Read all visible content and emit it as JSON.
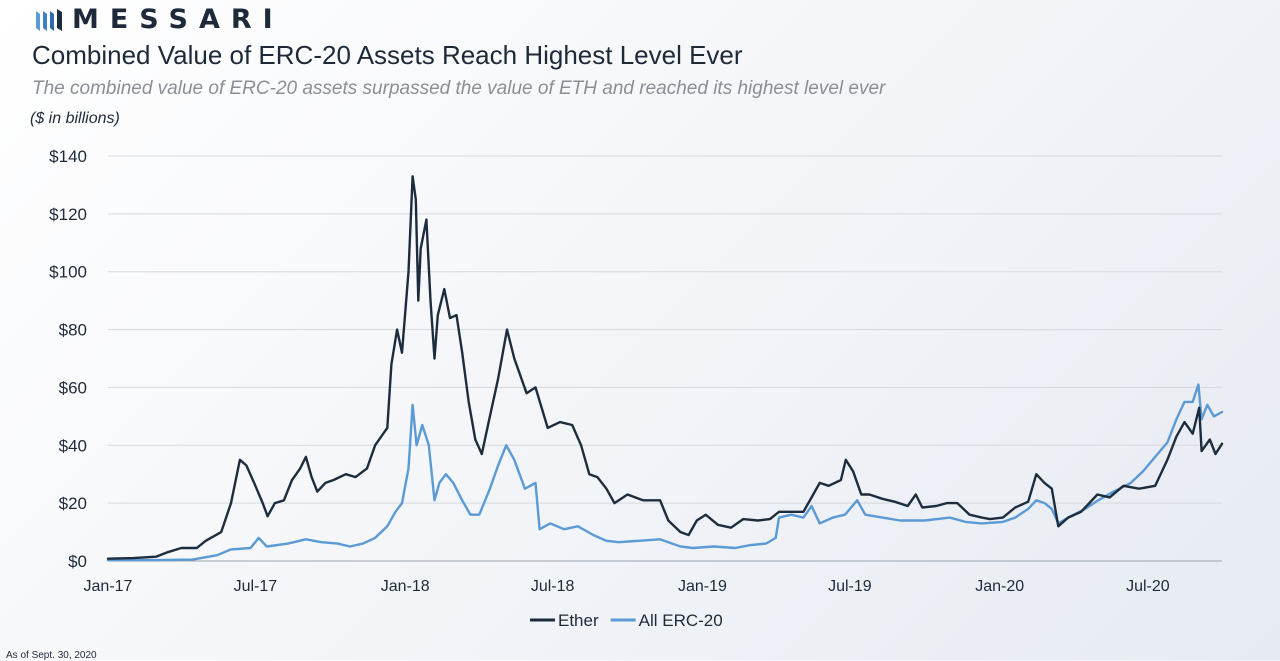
{
  "header": {
    "brand": "MESSARI",
    "title": "Combined Value of ERC-20 Assets Reach Highest Level Ever",
    "subtitle": "The combined value of ERC-20 assets surpassed the value of ETH and reached its highest level ever",
    "unit_label": "($ in billions)"
  },
  "footer": {
    "note": "As of Sept. 30, 2020"
  },
  "chart_data": {
    "type": "line",
    "title": "Combined Value of ERC-20 Assets Reach Highest Level Ever",
    "ylabel": "($ in billions)",
    "xlabel": "",
    "x_range": [
      "2017-01-01",
      "2020-09-30"
    ],
    "ylim": [
      0,
      140
    ],
    "y_ticks": [
      0,
      20,
      40,
      60,
      80,
      100,
      120,
      140
    ],
    "y_tick_labels": [
      "$0",
      "$20",
      "$40",
      "$60",
      "$80",
      "$100",
      "$120",
      "$140"
    ],
    "x_ticks": [
      "2017-01-01",
      "2017-07-01",
      "2018-01-01",
      "2018-07-01",
      "2019-01-01",
      "2019-07-01",
      "2020-01-01",
      "2020-07-01"
    ],
    "x_tick_labels": [
      "Jan-17",
      "Jul-17",
      "Jan-18",
      "Jul-18",
      "Jan-19",
      "Jul-19",
      "Jan-20",
      "Jul-20"
    ],
    "grid": "horizontal",
    "legend_position": "bottom-center",
    "series": [
      {
        "name": "Ether",
        "color": "#1e2d3d",
        "points": [
          [
            "2017-01-01",
            0.8
          ],
          [
            "2017-02-01",
            1.0
          ],
          [
            "2017-03-01",
            1.5
          ],
          [
            "2017-03-15",
            3.0
          ],
          [
            "2017-04-01",
            4.5
          ],
          [
            "2017-04-20",
            4.5
          ],
          [
            "2017-05-01",
            7.0
          ],
          [
            "2017-05-20",
            10.0
          ],
          [
            "2017-06-01",
            20.0
          ],
          [
            "2017-06-12",
            35.0
          ],
          [
            "2017-06-20",
            33.0
          ],
          [
            "2017-07-01",
            26.0
          ],
          [
            "2017-07-10",
            20.0
          ],
          [
            "2017-07-16",
            15.5
          ],
          [
            "2017-07-25",
            20.0
          ],
          [
            "2017-08-05",
            21.0
          ],
          [
            "2017-08-15",
            28.0
          ],
          [
            "2017-08-25",
            32.0
          ],
          [
            "2017-09-01",
            36.0
          ],
          [
            "2017-09-08",
            29.0
          ],
          [
            "2017-09-15",
            24.0
          ],
          [
            "2017-09-25",
            27.0
          ],
          [
            "2017-10-05",
            28.0
          ],
          [
            "2017-10-20",
            30.0
          ],
          [
            "2017-11-01",
            29.0
          ],
          [
            "2017-11-15",
            32.0
          ],
          [
            "2017-11-25",
            40.0
          ],
          [
            "2017-12-05",
            44.0
          ],
          [
            "2017-12-10",
            46.0
          ],
          [
            "2017-12-15",
            68.0
          ],
          [
            "2017-12-22",
            80.0
          ],
          [
            "2017-12-28",
            72.0
          ],
          [
            "2018-01-05",
            100.0
          ],
          [
            "2018-01-10",
            133.0
          ],
          [
            "2018-01-14",
            125.0
          ],
          [
            "2018-01-17",
            90.0
          ],
          [
            "2018-01-20",
            108.0
          ],
          [
            "2018-01-27",
            118.0
          ],
          [
            "2018-02-01",
            90.0
          ],
          [
            "2018-02-06",
            70.0
          ],
          [
            "2018-02-10",
            85.0
          ],
          [
            "2018-02-18",
            94.0
          ],
          [
            "2018-02-25",
            84.0
          ],
          [
            "2018-03-05",
            85.0
          ],
          [
            "2018-03-12",
            72.0
          ],
          [
            "2018-03-20",
            55.0
          ],
          [
            "2018-03-28",
            42.0
          ],
          [
            "2018-04-05",
            37.0
          ],
          [
            "2018-04-15",
            50.0
          ],
          [
            "2018-04-25",
            63.0
          ],
          [
            "2018-05-06",
            80.0
          ],
          [
            "2018-05-15",
            70.0
          ],
          [
            "2018-05-30",
            58.0
          ],
          [
            "2018-06-10",
            60.0
          ],
          [
            "2018-06-25",
            46.0
          ],
          [
            "2018-07-10",
            48.0
          ],
          [
            "2018-07-25",
            47.0
          ],
          [
            "2018-08-05",
            40.0
          ],
          [
            "2018-08-15",
            30.0
          ],
          [
            "2018-08-25",
            29.0
          ],
          [
            "2018-09-05",
            25.0
          ],
          [
            "2018-09-15",
            20.0
          ],
          [
            "2018-10-01",
            23.0
          ],
          [
            "2018-10-20",
            21.0
          ],
          [
            "2018-11-10",
            21.0
          ],
          [
            "2018-11-20",
            14.0
          ],
          [
            "2018-12-05",
            10.0
          ],
          [
            "2018-12-15",
            9.0
          ],
          [
            "2018-12-25",
            14.0
          ],
          [
            "2019-01-05",
            16.0
          ],
          [
            "2019-01-20",
            12.5
          ],
          [
            "2019-02-05",
            11.5
          ],
          [
            "2019-02-20",
            14.5
          ],
          [
            "2019-03-10",
            14.0
          ],
          [
            "2019-03-25",
            14.5
          ],
          [
            "2019-04-05",
            17.0
          ],
          [
            "2019-04-20",
            17.0
          ],
          [
            "2019-05-05",
            17.0
          ],
          [
            "2019-05-15",
            22.0
          ],
          [
            "2019-05-25",
            27.0
          ],
          [
            "2019-06-05",
            26.0
          ],
          [
            "2019-06-20",
            28.0
          ],
          [
            "2019-06-26",
            35.0
          ],
          [
            "2019-07-05",
            31.0
          ],
          [
            "2019-07-15",
            23.0
          ],
          [
            "2019-07-25",
            23.0
          ],
          [
            "2019-08-10",
            21.5
          ],
          [
            "2019-08-25",
            20.5
          ],
          [
            "2019-09-10",
            19.0
          ],
          [
            "2019-09-20",
            23.0
          ],
          [
            "2019-09-28",
            18.5
          ],
          [
            "2019-10-15",
            19.0
          ],
          [
            "2019-10-28",
            20.0
          ],
          [
            "2019-11-10",
            20.0
          ],
          [
            "2019-11-25",
            16.0
          ],
          [
            "2019-12-10",
            15.0
          ],
          [
            "2019-12-20",
            14.5
          ],
          [
            "2020-01-05",
            15.0
          ],
          [
            "2020-01-20",
            18.5
          ],
          [
            "2020-02-05",
            20.5
          ],
          [
            "2020-02-15",
            30.0
          ],
          [
            "2020-02-25",
            27.0
          ],
          [
            "2020-03-05",
            25.0
          ],
          [
            "2020-03-13",
            12.0
          ],
          [
            "2020-03-25",
            15.0
          ],
          [
            "2020-04-10",
            17.0
          ],
          [
            "2020-04-30",
            23.0
          ],
          [
            "2020-05-15",
            22.0
          ],
          [
            "2020-06-01",
            26.0
          ],
          [
            "2020-06-20",
            25.0
          ],
          [
            "2020-07-10",
            26.0
          ],
          [
            "2020-07-25",
            35.0
          ],
          [
            "2020-08-05",
            43.0
          ],
          [
            "2020-08-15",
            48.0
          ],
          [
            "2020-08-25",
            44.0
          ],
          [
            "2020-09-02",
            53.0
          ],
          [
            "2020-09-05",
            38.0
          ],
          [
            "2020-09-15",
            42.0
          ],
          [
            "2020-09-22",
            37.0
          ],
          [
            "2020-09-30",
            40.5
          ]
        ]
      },
      {
        "name": "All ERC-20",
        "color": "#5b9ad5",
        "points": [
          [
            "2017-01-01",
            0.3
          ],
          [
            "2017-03-01",
            0.3
          ],
          [
            "2017-04-15",
            0.5
          ],
          [
            "2017-05-15",
            2.0
          ],
          [
            "2017-06-01",
            4.0
          ],
          [
            "2017-06-25",
            4.5
          ],
          [
            "2017-07-05",
            8.0
          ],
          [
            "2017-07-15",
            5.0
          ],
          [
            "2017-08-10",
            6.0
          ],
          [
            "2017-09-01",
            7.5
          ],
          [
            "2017-09-20",
            6.5
          ],
          [
            "2017-10-10",
            6.0
          ],
          [
            "2017-10-25",
            5.0
          ],
          [
            "2017-11-10",
            6.0
          ],
          [
            "2017-11-25",
            8.0
          ],
          [
            "2017-12-10",
            12.0
          ],
          [
            "2017-12-20",
            17.0
          ],
          [
            "2017-12-28",
            20.0
          ],
          [
            "2018-01-05",
            32.0
          ],
          [
            "2018-01-10",
            54.0
          ],
          [
            "2018-01-15",
            40.0
          ],
          [
            "2018-01-22",
            47.0
          ],
          [
            "2018-01-30",
            40.0
          ],
          [
            "2018-02-06",
            21.0
          ],
          [
            "2018-02-12",
            27.0
          ],
          [
            "2018-02-20",
            30.0
          ],
          [
            "2018-03-01",
            27.0
          ],
          [
            "2018-03-12",
            21.0
          ],
          [
            "2018-03-22",
            16.0
          ],
          [
            "2018-04-02",
            16.0
          ],
          [
            "2018-04-15",
            25.0
          ],
          [
            "2018-04-25",
            33.0
          ],
          [
            "2018-05-05",
            40.0
          ],
          [
            "2018-05-15",
            35.0
          ],
          [
            "2018-05-28",
            25.0
          ],
          [
            "2018-06-10",
            27.0
          ],
          [
            "2018-06-15",
            11.0
          ],
          [
            "2018-06-28",
            13.0
          ],
          [
            "2018-07-15",
            11.0
          ],
          [
            "2018-08-01",
            12.0
          ],
          [
            "2018-08-20",
            9.0
          ],
          [
            "2018-09-05",
            7.0
          ],
          [
            "2018-09-20",
            6.5
          ],
          [
            "2018-10-15",
            7.0
          ],
          [
            "2018-11-10",
            7.5
          ],
          [
            "2018-11-20",
            6.5
          ],
          [
            "2018-12-05",
            5.0
          ],
          [
            "2018-12-20",
            4.5
          ],
          [
            "2019-01-15",
            5.0
          ],
          [
            "2019-02-10",
            4.5
          ],
          [
            "2019-03-01",
            5.5
          ],
          [
            "2019-03-20",
            6.0
          ],
          [
            "2019-04-01",
            8.0
          ],
          [
            "2019-04-05",
            15.0
          ],
          [
            "2019-04-20",
            16.0
          ],
          [
            "2019-05-05",
            15.0
          ],
          [
            "2019-05-15",
            19.0
          ],
          [
            "2019-05-25",
            13.0
          ],
          [
            "2019-06-10",
            15.0
          ],
          [
            "2019-06-25",
            16.0
          ],
          [
            "2019-07-10",
            21.0
          ],
          [
            "2019-07-20",
            16.0
          ],
          [
            "2019-08-10",
            15.0
          ],
          [
            "2019-09-01",
            14.0
          ],
          [
            "2019-10-01",
            14.0
          ],
          [
            "2019-11-01",
            15.0
          ],
          [
            "2019-11-20",
            13.5
          ],
          [
            "2019-12-10",
            13.0
          ],
          [
            "2020-01-05",
            13.5
          ],
          [
            "2020-01-20",
            15.0
          ],
          [
            "2020-02-05",
            18.0
          ],
          [
            "2020-02-15",
            21.0
          ],
          [
            "2020-02-25",
            20.0
          ],
          [
            "2020-03-05",
            18.0
          ],
          [
            "2020-03-13",
            13.0
          ],
          [
            "2020-03-25",
            15.0
          ],
          [
            "2020-04-15",
            18.0
          ],
          [
            "2020-05-01",
            21.0
          ],
          [
            "2020-05-20",
            24.0
          ],
          [
            "2020-06-10",
            27.0
          ],
          [
            "2020-06-25",
            31.0
          ],
          [
            "2020-07-10",
            36.0
          ],
          [
            "2020-07-25",
            41.0
          ],
          [
            "2020-08-05",
            49.0
          ],
          [
            "2020-08-15",
            55.0
          ],
          [
            "2020-08-25",
            55.0
          ],
          [
            "2020-09-01",
            61.0
          ],
          [
            "2020-09-05",
            49.0
          ],
          [
            "2020-09-12",
            54.0
          ],
          [
            "2020-09-20",
            50.0
          ],
          [
            "2020-09-30",
            51.5
          ]
        ]
      }
    ]
  }
}
